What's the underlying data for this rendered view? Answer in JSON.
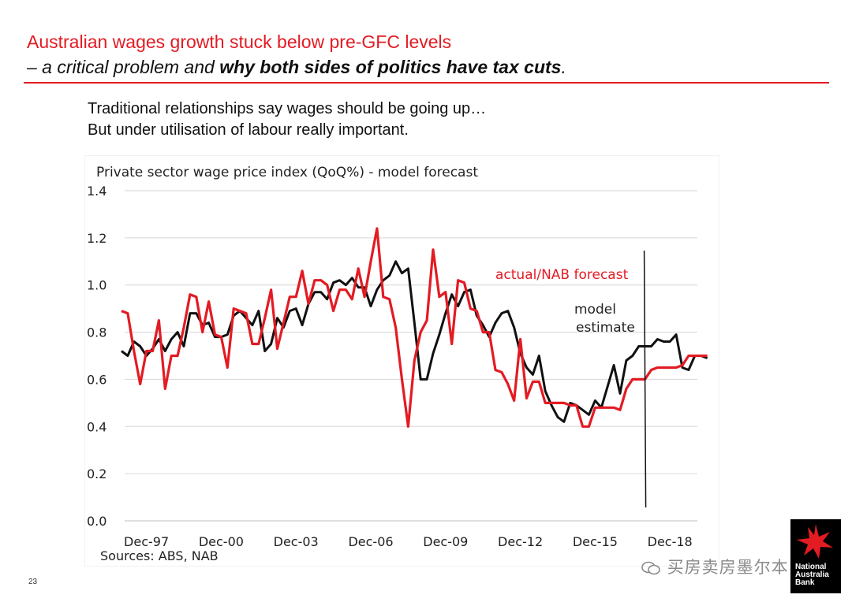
{
  "slide": {
    "title_line1": "Australian wages growth stuck below pre-GFC levels",
    "title_line2_prefix": "– a critical problem and ",
    "title_line2_bold": "why both sides of politics have tax cuts",
    "title_line2_suffix": ".",
    "bullet1": "Traditional relationships say wages should be going up…",
    "bullet2": "But under utilisation of labour really important.",
    "page_number": "23",
    "watermark": "买房卖房墨尔本",
    "logo_text": "National\nAustralia\nBank"
  },
  "colors": {
    "accent": "#e31b23",
    "model": "#111111",
    "grid": "#d6d6d6",
    "logo_bg": "#000000",
    "logo_star": "#e31b23"
  },
  "chart_data": {
    "type": "line",
    "title": "Private sector wage price index (QoQ%)  - model forecast",
    "source": "Sources: ABS, NAB",
    "x_start": "Dec-96",
    "x_unit": "quarter",
    "x_tick_labels": [
      "Dec-97",
      "Dec-00",
      "Dec-03",
      "Dec-06",
      "Dec-09",
      "Dec-12",
      "Dec-15",
      "Dec-18"
    ],
    "y_tick_labels": [
      "1.4",
      "1.2",
      "1.0",
      "0.8",
      "0.6",
      "0.4",
      "0.2",
      "0.0"
    ],
    "ylim": [
      0,
      1.4
    ],
    "grid": true,
    "forecast_marker_x": "Dec-17",
    "annotations": [
      "actual/NAB forecast",
      "model",
      "estimate"
    ],
    "series": [
      {
        "name": "model estimate",
        "color": "#111111",
        "values": [
          0.72,
          0.7,
          0.76,
          0.74,
          0.7,
          0.73,
          0.77,
          0.72,
          0.77,
          0.8,
          0.74,
          0.88,
          0.88,
          0.83,
          0.84,
          0.78,
          0.78,
          0.79,
          0.87,
          0.89,
          0.86,
          0.83,
          0.89,
          0.72,
          0.75,
          0.86,
          0.82,
          0.89,
          0.9,
          0.83,
          0.92,
          0.97,
          0.97,
          0.94,
          1.01,
          1.02,
          1.0,
          1.03,
          0.99,
          0.99,
          0.91,
          0.98,
          1.02,
          1.04,
          1.1,
          1.05,
          1.07,
          0.84,
          0.6,
          0.6,
          0.71,
          0.79,
          0.88,
          0.96,
          0.91,
          0.97,
          0.98,
          0.87,
          0.83,
          0.78,
          0.84,
          0.88,
          0.89,
          0.82,
          0.71,
          0.65,
          0.62,
          0.7,
          0.55,
          0.49,
          0.44,
          0.42,
          0.5,
          0.49,
          0.47,
          0.45,
          0.51,
          0.48,
          0.57,
          0.66,
          0.54,
          0.68,
          0.7,
          0.74,
          0.74,
          0.74,
          0.77,
          0.76,
          0.76,
          0.79,
          0.65,
          0.64,
          0.7,
          0.7,
          0.69
        ]
      },
      {
        "name": "actual/NAB forecast",
        "color": "#e31b23",
        "values": [
          0.89,
          0.88,
          0.72,
          0.58,
          0.72,
          0.72,
          0.85,
          0.56,
          0.7,
          0.7,
          0.82,
          0.96,
          0.95,
          0.8,
          0.93,
          0.79,
          0.78,
          0.65,
          0.9,
          0.89,
          0.88,
          0.75,
          0.75,
          0.86,
          0.98,
          0.73,
          0.84,
          0.95,
          0.95,
          1.06,
          0.92,
          1.02,
          1.02,
          1.0,
          0.89,
          0.98,
          0.98,
          0.94,
          1.07,
          0.95,
          1.1,
          1.24,
          0.95,
          0.94,
          0.82,
          0.6,
          0.4,
          0.68,
          0.8,
          0.85,
          1.15,
          0.95,
          0.97,
          0.75,
          1.02,
          1.01,
          0.9,
          0.89,
          0.8,
          0.8,
          0.64,
          0.63,
          0.58,
          0.51,
          0.77,
          0.52,
          0.59,
          0.59,
          0.5,
          0.5,
          0.5,
          0.5,
          0.49,
          0.49,
          0.4,
          0.4,
          0.48,
          0.48,
          0.48,
          0.48,
          0.47,
          0.56,
          0.6,
          0.6,
          0.6,
          0.64,
          0.65,
          0.65,
          0.65,
          0.65,
          0.66,
          0.7,
          0.7,
          0.7,
          0.7
        ]
      }
    ]
  }
}
